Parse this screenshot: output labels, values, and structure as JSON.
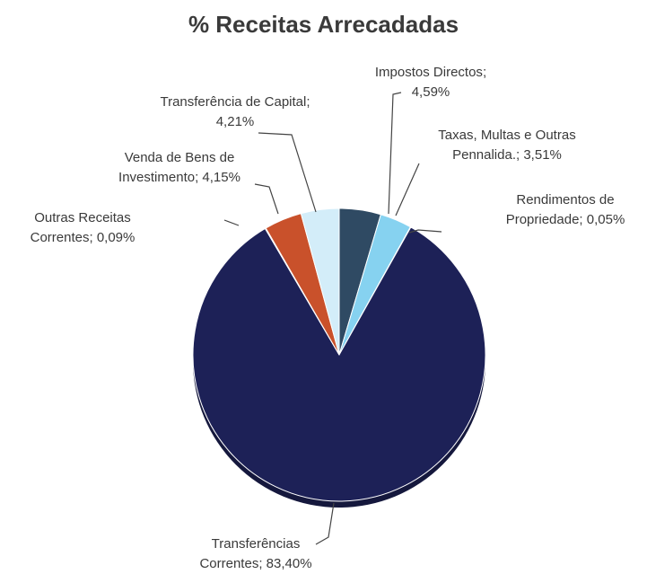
{
  "chart_data": {
    "type": "pie",
    "title": "% Receitas Arrecadadas",
    "categories": [
      "Impostos Directos",
      "Taxas, Multas e Outras Pennalida.",
      "Rendimentos de Propriedade",
      "Transferências Correntes",
      "Outras Receitas Correntes",
      "Venda de Bens de Investimento",
      "Transferência de Capital"
    ],
    "values": [
      4.59,
      3.51,
      0.05,
      83.4,
      0.09,
      4.15,
      4.21
    ],
    "value_labels": [
      "4,59%",
      "3,51%",
      "0,05%",
      "83,40%",
      "0,09%",
      "4,15%",
      "4,21%"
    ],
    "separator": ";",
    "colors": [
      "#2f4a63",
      "#86d2f0",
      "#1b2b52",
      "#1d2157",
      "#3b4b72",
      "#c9512b",
      "#d3edf9"
    ]
  }
}
